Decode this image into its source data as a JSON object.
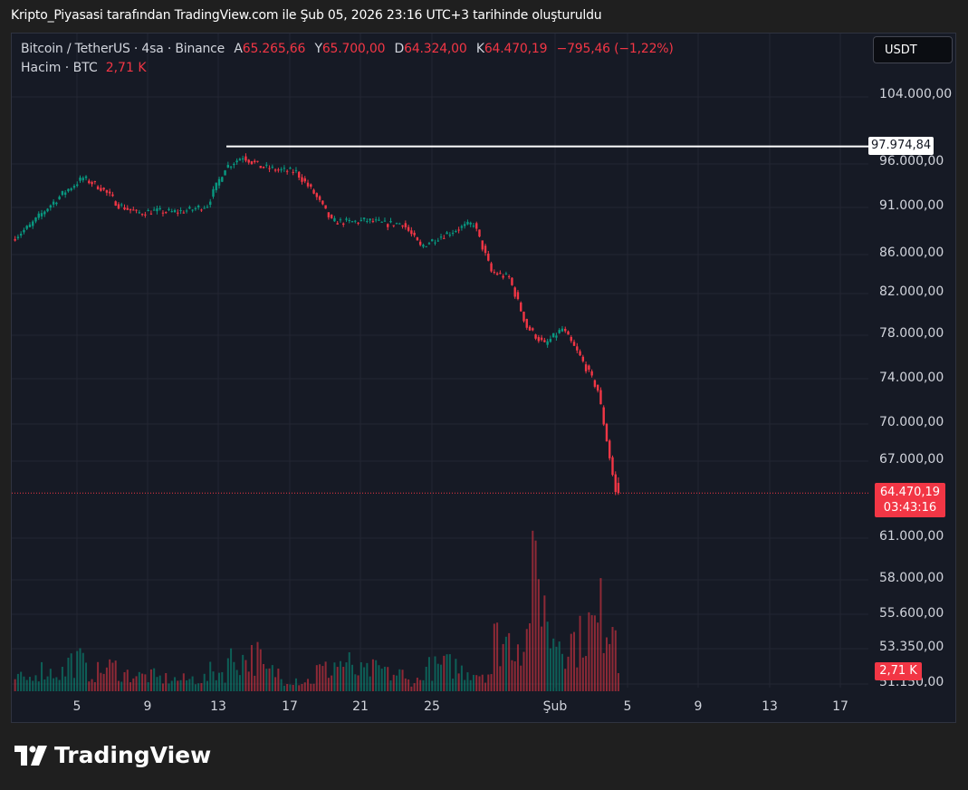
{
  "caption": "Kripto_Piyasasi tarafından TradingView.com ile Şub 05, 2026 23:16 UTC+3 tarihinde oluşturuldu",
  "legend": {
    "symbol": "Bitcoin / TetherUS · 4sa · Binance",
    "open_label": "A",
    "open": "65.265,66",
    "high_label": "Y",
    "high": "65.700,00",
    "low_label": "D",
    "low": "64.324,00",
    "close_label": "K",
    "close": "64.470,19",
    "change": "−795,46 (−1,22%)",
    "volume_label": "Hacim · BTC",
    "volume": "2,71 K"
  },
  "currency_button": "USDT",
  "hline_label": "97.974,84",
  "price_label": {
    "price": "64.470,19",
    "countdown": "03:43:16"
  },
  "volume_label": "2,71 K",
  "brand": "TradingView",
  "colors": {
    "up": "#089981",
    "down": "#f23645",
    "background": "#161a25",
    "grid": "#232632"
  },
  "chart_data": {
    "type": "candlestick",
    "title": "Bitcoin / TetherUS · 4sa · Binance",
    "x_tick_labels": [
      "5",
      "9",
      "13",
      "17",
      "21",
      "25",
      "Şub",
      "5",
      "9",
      "13",
      "17"
    ],
    "y_tick_labels": [
      "104.000,00",
      "96.000,00",
      "91.000,00",
      "86.000,00",
      "82.000,00",
      "78.000,00",
      "74.000,00",
      "70.000,00",
      "67.000,00",
      "61.000,00",
      "58.000,00",
      "55.600,00",
      "53.350,00",
      "51.150,00"
    ],
    "y_scale": "log",
    "ylim": [
      50500,
      108000
    ],
    "horizontal_line": 97974.84,
    "last_price": 64470.19,
    "close_series": [
      {
        "t": "Jan 2",
        "close": 87600
      },
      {
        "t": "Jan 3",
        "close": 89000
      },
      {
        "t": "Jan 4",
        "close": 91000
      },
      {
        "t": "Jan 5",
        "close": 92800
      },
      {
        "t": "Jan 6",
        "close": 94300
      },
      {
        "t": "Jan 7",
        "close": 93200
      },
      {
        "t": "Jan 8",
        "close": 91300
      },
      {
        "t": "Jan 9",
        "close": 90400
      },
      {
        "t": "Jan 10",
        "close": 90600
      },
      {
        "t": "Jan 11",
        "close": 90500
      },
      {
        "t": "Jan 12",
        "close": 90700
      },
      {
        "t": "Jan 13",
        "close": 91300
      },
      {
        "t": "Jan 14",
        "close": 95500
      },
      {
        "t": "Jan 15",
        "close": 96800
      },
      {
        "t": "Jan 16",
        "close": 95600
      },
      {
        "t": "Jan 17",
        "close": 95200
      },
      {
        "t": "Jan 18",
        "close": 95000
      },
      {
        "t": "Jan 19",
        "close": 92600
      },
      {
        "t": "Jan 20",
        "close": 89500
      },
      {
        "t": "Jan 21",
        "close": 89400
      },
      {
        "t": "Jan 22",
        "close": 89600
      },
      {
        "t": "Jan 23",
        "close": 89200
      },
      {
        "t": "Jan 24",
        "close": 89300
      },
      {
        "t": "Jan 25",
        "close": 86800
      },
      {
        "t": "Jan 26",
        "close": 87800
      },
      {
        "t": "Jan 27",
        "close": 88600
      },
      {
        "t": "Jan 28",
        "close": 89300
      },
      {
        "t": "Jan 29",
        "close": 84200
      },
      {
        "t": "Jan 30",
        "close": 83600
      },
      {
        "t": "Jan 31",
        "close": 78800
      },
      {
        "t": "Feb 1",
        "close": 77100
      },
      {
        "t": "Feb 2",
        "close": 78600
      },
      {
        "t": "Feb 3",
        "close": 76000
      },
      {
        "t": "Feb 4",
        "close": 73000
      },
      {
        "t": "Feb 5",
        "close": 64470
      }
    ],
    "volume_series": [
      {
        "t": "Jan 2",
        "volume": 12
      },
      {
        "t": "Jan 3",
        "volume": 20
      },
      {
        "t": "Jan 4",
        "volume": 18
      },
      {
        "t": "Jan 5",
        "volume": 28
      },
      {
        "t": "Jan 6",
        "volume": 18
      },
      {
        "t": "Jan 7",
        "volume": 22
      },
      {
        "t": "Jan 8",
        "volume": 16
      },
      {
        "t": "Jan 9",
        "volume": 14
      },
      {
        "t": "Jan 10",
        "volume": 12
      },
      {
        "t": "Jan 11",
        "volume": 11
      },
      {
        "t": "Jan 12",
        "volume": 12
      },
      {
        "t": "Jan 13",
        "volume": 18
      },
      {
        "t": "Jan 14",
        "volume": 30
      },
      {
        "t": "Jan 15",
        "volume": 32
      },
      {
        "t": "Jan 16",
        "volume": 18
      },
      {
        "t": "Jan 17",
        "volume": 12
      },
      {
        "t": "Jan 18",
        "volume": 10
      },
      {
        "t": "Jan 19",
        "volume": 20
      },
      {
        "t": "Jan 20",
        "volume": 26
      },
      {
        "t": "Jan 21",
        "volume": 18
      },
      {
        "t": "Jan 22",
        "volume": 20
      },
      {
        "t": "Jan 23",
        "volume": 16
      },
      {
        "t": "Jan 24",
        "volume": 10
      },
      {
        "t": "Jan 25",
        "volume": 22
      },
      {
        "t": "Jan 26",
        "volume": 24
      },
      {
        "t": "Jan 27",
        "volume": 20
      },
      {
        "t": "Jan 28",
        "volume": 18
      },
      {
        "t": "Jan 29",
        "volume": 48
      },
      {
        "t": "Jan 30",
        "volume": 50
      },
      {
        "t": "Jan 31",
        "volume": 100
      },
      {
        "t": "Feb 1",
        "volume": 54
      },
      {
        "t": "Feb 2",
        "volume": 48
      },
      {
        "t": "Feb 3",
        "volume": 60
      },
      {
        "t": "Feb 4",
        "volume": 72
      },
      {
        "t": "Feb 5",
        "volume": 115
      }
    ]
  }
}
